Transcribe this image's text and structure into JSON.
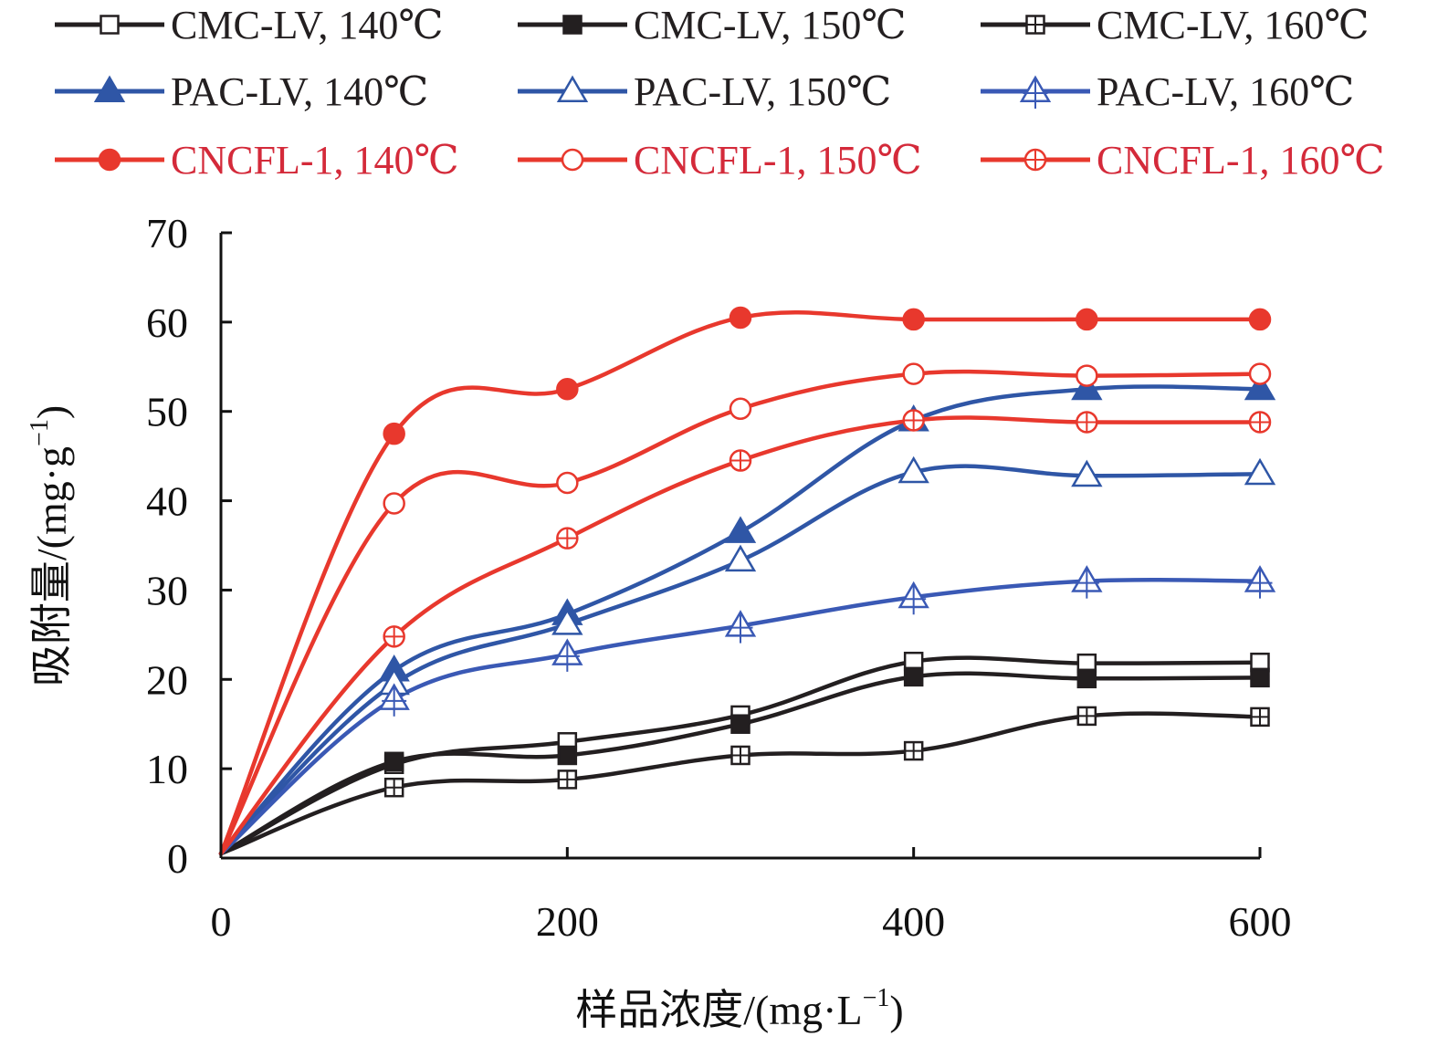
{
  "chart_data": {
    "type": "line",
    "title": "",
    "xlabel": "样品浓度/(mg·L",
    "xlabel_sup": "−1",
    "xlabel_end": ")",
    "ylabel": "吸附量/(mg·g",
    "ylabel_sup": "−1",
    "ylabel_end": ")",
    "xlim": [
      0,
      600
    ],
    "ylim": [
      0,
      70
    ],
    "xticks": [
      0,
      200,
      400,
      600
    ],
    "xtick_labels": [
      "0",
      "200",
      "400",
      "600"
    ],
    "yticks": [
      0,
      10,
      20,
      30,
      40,
      50,
      60,
      70
    ],
    "ytick_labels": [
      "0",
      "10",
      "20",
      "30",
      "40",
      "50",
      "60",
      "70"
    ],
    "grid": false,
    "legend_position": "top",
    "x": [
      0,
      100,
      200,
      300,
      400,
      500,
      600
    ],
    "series": [
      {
        "name": "CMC-LV, 140℃",
        "color": "#231f20",
        "label_color": "#231f20",
        "marker": "square-open",
        "values": [
          0.5,
          10.5,
          13.0,
          16.0,
          22.0,
          21.8,
          21.9
        ]
      },
      {
        "name": "CMC-LV, 150℃",
        "color": "#231f20",
        "label_color": "#231f20",
        "marker": "square-filled",
        "values": [
          0.5,
          10.8,
          11.5,
          15.0,
          20.3,
          20.1,
          20.2
        ]
      },
      {
        "name": "CMC-LV, 160℃",
        "color": "#231f20",
        "label_color": "#231f20",
        "marker": "square-plus",
        "values": [
          0.5,
          7.9,
          8.8,
          11.5,
          12.0,
          15.9,
          15.8
        ]
      },
      {
        "name": "PAC-LV, 140℃",
        "color": "#2f56a6",
        "label_color": "#231f20",
        "marker": "triangle-filled",
        "values": [
          0.5,
          21.0,
          27.3,
          36.5,
          49.0,
          52.5,
          52.5
        ]
      },
      {
        "name": "PAC-LV, 150℃",
        "color": "#2f56a6",
        "label_color": "#231f20",
        "marker": "triangle-open",
        "values": [
          0.5,
          19.5,
          26.2,
          33.3,
          43.2,
          42.8,
          43.0
        ]
      },
      {
        "name": "PAC-LV, 160℃",
        "color": "#3a59b5",
        "label_color": "#231f20",
        "marker": "triangle-plus",
        "values": [
          0.5,
          17.8,
          22.8,
          26.0,
          29.2,
          31.0,
          31.0
        ]
      },
      {
        "name": "CNCFL-1, 140℃",
        "color": "#e8382d",
        "label_color": "#d42a3a",
        "marker": "circle-filled",
        "values": [
          0.5,
          47.5,
          52.5,
          60.5,
          60.3,
          60.3,
          60.3
        ]
      },
      {
        "name": "CNCFL-1, 150℃",
        "color": "#e8382d",
        "label_color": "#d42a3a",
        "marker": "circle-open",
        "values": [
          0.5,
          39.7,
          42.0,
          50.3,
          54.2,
          54.0,
          54.2
        ]
      },
      {
        "name": "CNCFL-1, 160℃",
        "color": "#e8382d",
        "label_color": "#d42a3a",
        "marker": "circle-plus",
        "values": [
          0.5,
          24.8,
          35.8,
          44.5,
          49.0,
          48.8,
          48.8
        ]
      }
    ]
  }
}
